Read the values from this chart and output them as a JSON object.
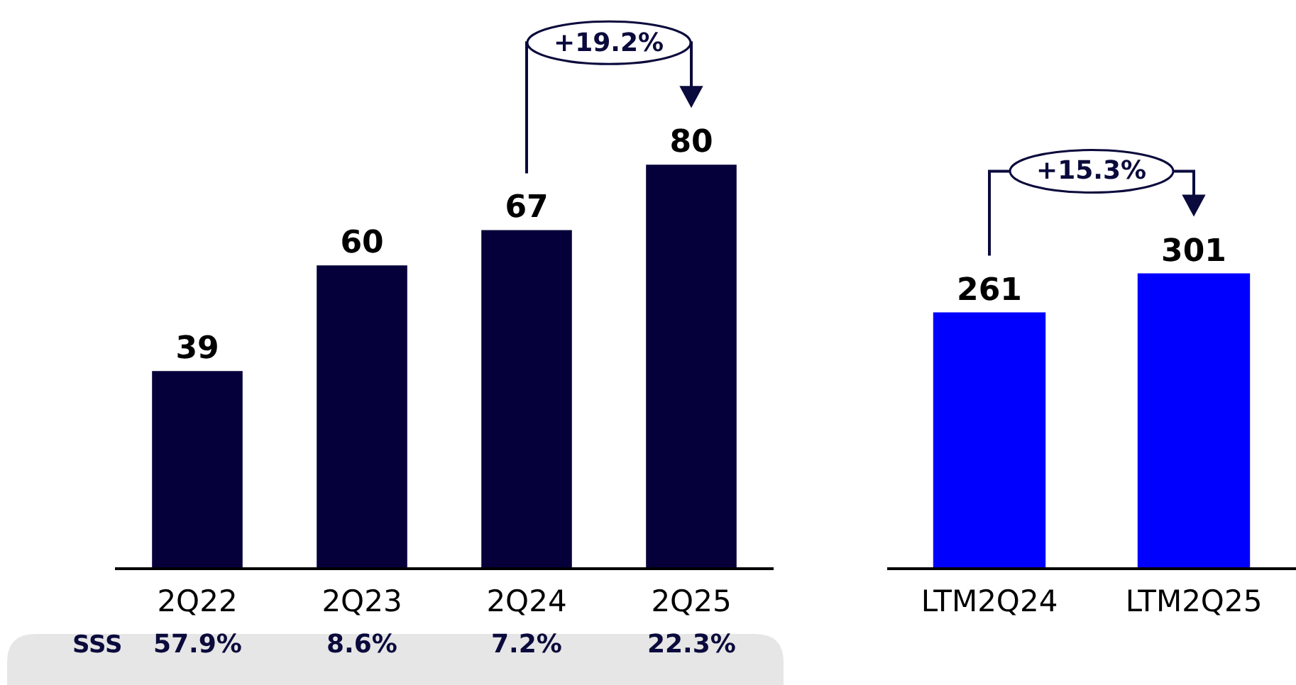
{
  "chart_data": [
    {
      "type": "bar",
      "categories": [
        "2Q22",
        "2Q23",
        "2Q24",
        "2Q25"
      ],
      "values": [
        39,
        60,
        67,
        80
      ],
      "color": "#06003a",
      "data_labels": true,
      "tick_labels": "x",
      "annotations": [
        "+19.2%",
        "SSS",
        "57.9%",
        "8.6%",
        "7.2%",
        "22.3%"
      ]
    },
    {
      "type": "bar",
      "categories": [
        "LTM2Q24",
        "LTM2Q25"
      ],
      "values": [
        261,
        301
      ],
      "color": "#0000ff",
      "data_labels": true,
      "tick_labels": "x",
      "annotations": [
        "+15.3%"
      ]
    }
  ]
}
